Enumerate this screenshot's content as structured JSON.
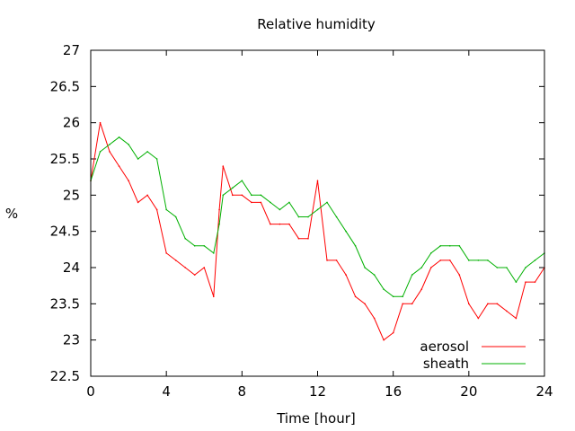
{
  "chart_data": {
    "type": "line",
    "title": "Relative humidity",
    "xlabel": "Time [hour]",
    "ylabel": "%",
    "xlim": [
      0,
      24
    ],
    "ylim": [
      22.5,
      27
    ],
    "x_ticks": [
      "0",
      "4",
      "8",
      "12",
      "16",
      "20",
      "24"
    ],
    "y_ticks": [
      "22.5",
      "23",
      "23.5",
      "24",
      "24.5",
      "25",
      "25.5",
      "26",
      "26.5",
      "27"
    ],
    "grid": false,
    "legend_position": "bottom-right",
    "series": [
      {
        "name": "aerosol",
        "color": "#ff0000",
        "x": [
          0,
          0.5,
          1,
          1.5,
          2,
          2.5,
          3,
          3.5,
          4,
          4.5,
          5,
          5.5,
          6,
          6.5,
          6.8,
          7,
          7.5,
          8,
          8.5,
          9,
          9.5,
          10,
          10.5,
          11,
          11.5,
          12,
          12.5,
          13,
          13.5,
          14,
          14.5,
          15,
          15.5,
          16,
          16.5,
          17,
          17.5,
          18,
          18.5,
          19,
          19.5,
          20,
          20.5,
          21,
          21.5,
          22,
          22.5,
          23,
          23.5,
          24
        ],
        "y": [
          25.2,
          26.0,
          25.6,
          25.4,
          25.2,
          24.9,
          25.0,
          24.8,
          24.2,
          24.1,
          24.0,
          23.9,
          24.0,
          23.6,
          24.8,
          25.4,
          25.0,
          25.0,
          24.9,
          24.9,
          24.6,
          24.6,
          24.6,
          24.4,
          24.4,
          25.2,
          24.1,
          24.1,
          23.9,
          23.6,
          23.5,
          23.3,
          23.0,
          23.1,
          23.5,
          23.5,
          23.7,
          24.0,
          24.1,
          24.1,
          23.9,
          23.5,
          23.3,
          23.5,
          23.5,
          23.4,
          23.3,
          23.8,
          23.8,
          24.0
        ]
      },
      {
        "name": "sheath",
        "color": "#00b000",
        "x": [
          0,
          0.5,
          1,
          1.5,
          2,
          2.5,
          3,
          3.5,
          4,
          4.5,
          5,
          5.5,
          6,
          6.5,
          6.8,
          7,
          7.5,
          8,
          8.5,
          9,
          9.5,
          10,
          10.5,
          11,
          11.5,
          12,
          12.5,
          13,
          13.5,
          14,
          14.5,
          15,
          15.5,
          16,
          16.5,
          17,
          17.5,
          18,
          18.5,
          19,
          19.5,
          20,
          20.5,
          21,
          21.5,
          22,
          22.5,
          23,
          23.5,
          24
        ],
        "y": [
          25.2,
          25.6,
          25.7,
          25.8,
          25.7,
          25.5,
          25.6,
          25.5,
          24.8,
          24.7,
          24.4,
          24.3,
          24.3,
          24.2,
          24.6,
          25.0,
          25.1,
          25.2,
          25.0,
          25.0,
          24.9,
          24.8,
          24.9,
          24.7,
          24.7,
          24.8,
          24.9,
          24.7,
          24.5,
          24.3,
          24.0,
          23.9,
          23.7,
          23.6,
          23.6,
          23.9,
          24.0,
          24.2,
          24.3,
          24.3,
          24.3,
          24.1,
          24.1,
          24.1,
          24.0,
          24.0,
          23.8,
          24.0,
          24.1,
          24.2
        ]
      }
    ]
  }
}
